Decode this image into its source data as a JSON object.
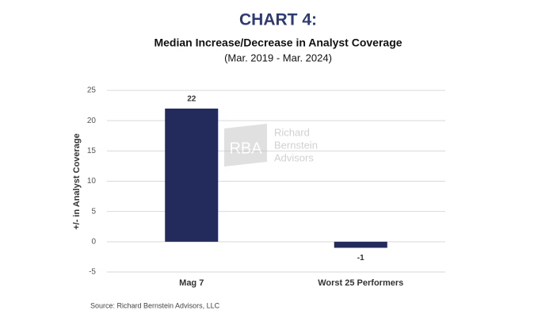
{
  "chart_data": {
    "type": "bar",
    "title": "CHART 4:",
    "subtitle": "Median Increase/Decrease in Analyst Coverage",
    "date_range": "(Mar. 2019 - Mar. 2024)",
    "y_label": "+/- in Analyst Coverage",
    "categories": [
      "Mag 7",
      "Worst 25 Performers"
    ],
    "values": [
      22,
      -1
    ],
    "color": "#232a5c",
    "ylim": [
      -5,
      25
    ],
    "yticks": [
      -5,
      0,
      5,
      10,
      15,
      20,
      25
    ],
    "grid": true,
    "watermark": {
      "logo": "RBA",
      "lines": [
        "Richard",
        "Bernstein",
        "Advisors"
      ]
    },
    "source": "Source: Richard Bernstein Advisors, LLC"
  }
}
